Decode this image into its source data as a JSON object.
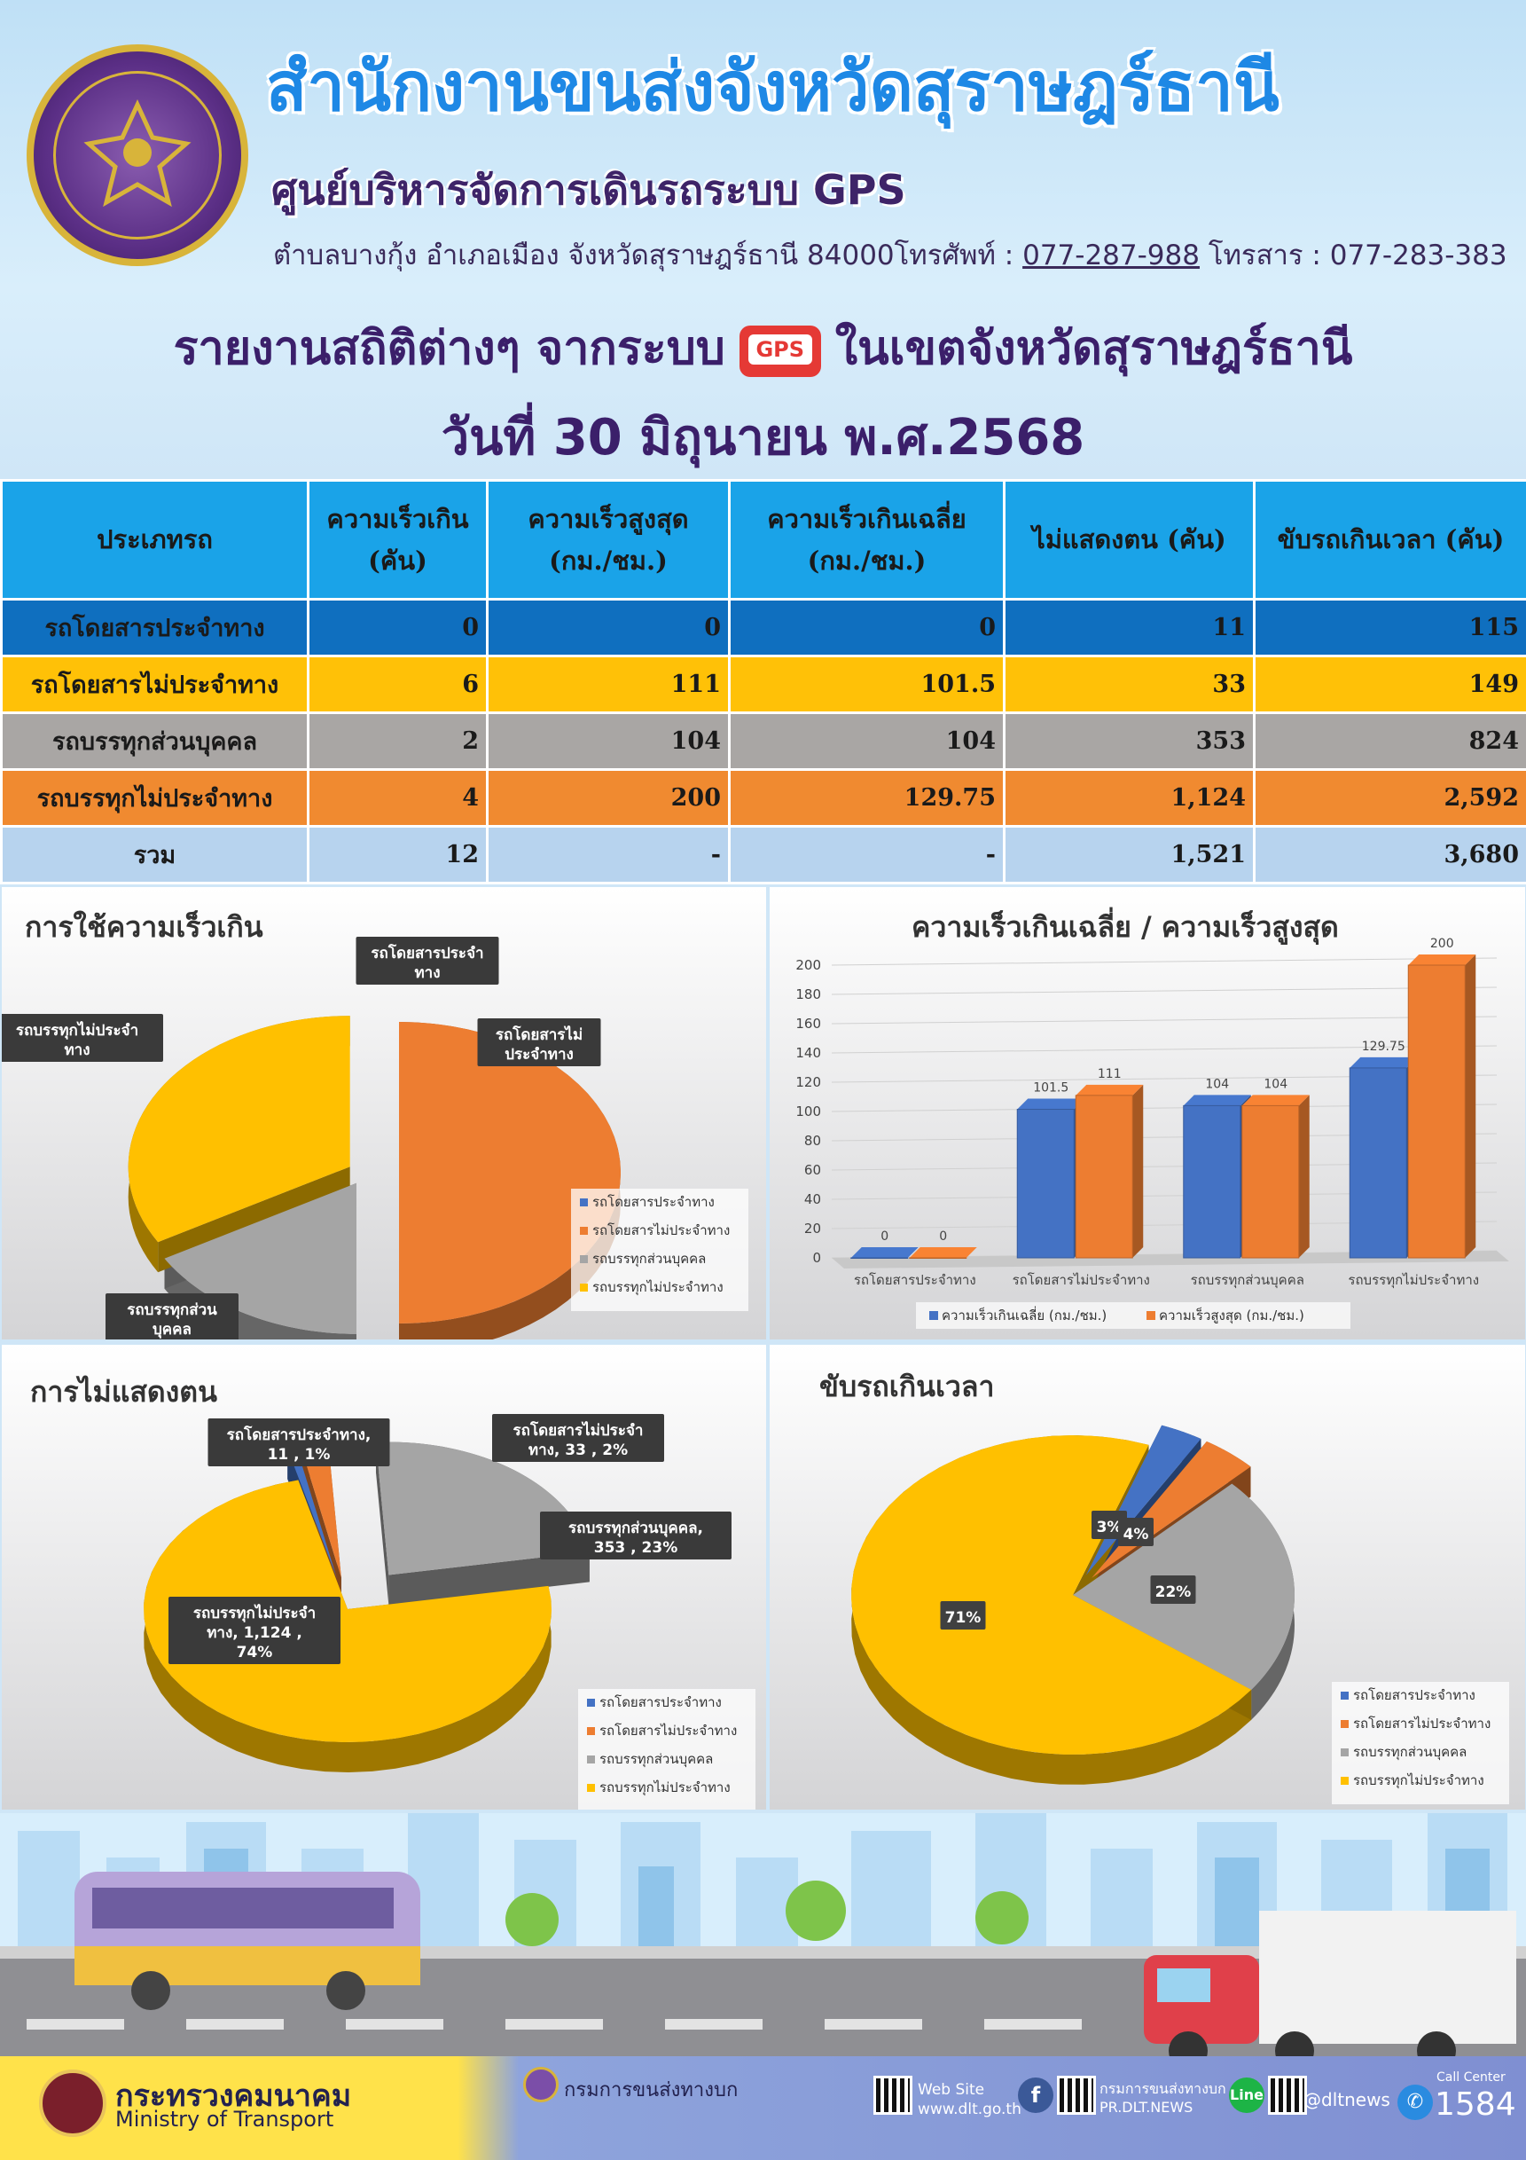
{
  "header": {
    "org_title": "สำนักงานขนส่งจังหวัดสุราษฎร์ธานี",
    "org_subtitle": "ศูนย์บริหารจัดการเดินรถระบบ GPS",
    "address": "ตำบลบางกุ้ง อำเภอเมือง จังหวัดสุราษฎร์ธานี 84000โทรศัพท์ : ",
    "phone": "077-287-988",
    "fax_label": " โทรสาร : ",
    "fax": "077-283-383",
    "report_title_left": "รายงานสถิติต่างๆ จากระบบ",
    "gps_badge": "GPS",
    "report_title_right": "ในเขตจังหวัดสุราษฎร์ธานี",
    "report_date": "วันที่ 30 มิถุนายน พ.ศ.2568"
  },
  "table": {
    "headers": [
      [
        "ประเภทรถ"
      ],
      [
        "ความเร็วเกิน",
        "(คัน)"
      ],
      [
        "ความเร็วสูงสุด",
        "(กม./ชม.)"
      ],
      [
        "ความเร็วเกินเฉลี่ย",
        "(กม./ชม.)"
      ],
      [
        "ไม่แสดงตน (คัน)"
      ],
      [
        "ขับรถเกินเวลา (คัน)"
      ]
    ],
    "rows": [
      [
        "รถโดยสารประจำทาง",
        "0",
        "0",
        "0",
        "11",
        "115"
      ],
      [
        "รถโดยสารไม่ประจำทาง",
        "6",
        "111",
        "101.5",
        "33",
        "149"
      ],
      [
        "รถบรรทุกส่วนบุคคล",
        "2",
        "104",
        "104",
        "353",
        "824"
      ],
      [
        "รถบรรทุกไม่ประจำทาง",
        "4",
        "200",
        "129.75",
        "1,124",
        "2,592"
      ],
      [
        "รวม",
        "12",
        "-",
        "-",
        "1,521",
        "3,680"
      ]
    ]
  },
  "colors": {
    "bus_fixed": "#4472c4",
    "bus_nonfixed": "#ed7d31",
    "truck_private": "#a5a5a5",
    "truck_nonfixed": "#ffc000"
  },
  "chart_data": [
    {
      "type": "pie",
      "title": "การใช้ความเร็วเกิน",
      "categories": [
        "รถโดยสารประจำทาง",
        "รถโดยสารไม่ประจำทาง",
        "รถบรรทุกส่วนบุคคล",
        "รถบรรทุกไม่ประจำทาง"
      ],
      "values": [
        0,
        6,
        2,
        4
      ],
      "callouts": [
        "รถโดยสารประจำ\nทาง",
        "รถโดยสารไม่\nประจำทาง",
        "รถบรรทุกส่วน\nบุคคล",
        "รถบรรทุกไม่ประจำ\nทาง"
      ],
      "legend": "right"
    },
    {
      "type": "bar",
      "title": "ความเร็วเกินเฉลี่ย / ความเร็วสูงสุด",
      "categories": [
        "รถโดยสารประจำทาง",
        "รถโดยสารไม่ประจำทาง",
        "รถบรรทุกส่วนบุคคล",
        "รถบรรทุกไม่ประจำทาง"
      ],
      "series": [
        {
          "name": "ความเร็วเกินเฉลี่ย (กม./ชม.)",
          "values": [
            0,
            101.5,
            104,
            129.75
          ],
          "labels": [
            "0",
            "101.5",
            "104",
            "129.75"
          ]
        },
        {
          "name": "ความเร็วสูงสุด (กม./ชม.)",
          "values": [
            0,
            111,
            104,
            200
          ],
          "labels": [
            "0",
            "111",
            "104",
            "200"
          ]
        }
      ],
      "ylim": [
        0,
        200
      ],
      "yticks": [
        "0",
        "20",
        "40",
        "60",
        "80",
        "100",
        "120",
        "140",
        "160",
        "180",
        "200"
      ],
      "legend": "bottom"
    },
    {
      "type": "pie",
      "title": "การไม่แสดงตน",
      "categories": [
        "รถโดยสารประจำทาง",
        "รถโดยสารไม่ประจำทาง",
        "รถบรรทุกส่วนบุคคล",
        "รถบรรทุกไม่ประจำทาง"
      ],
      "values": [
        11,
        33,
        353,
        1124
      ],
      "callouts": [
        "รถโดยสารประจำทาง,\n11 , 1%",
        "รถโดยสารไม่ประจำ\nทาง, 33 , 2%",
        "รถบรรทุกส่วนบุคคล,\n353 , 23%",
        "รถบรรทุกไม่ประจำ\nทาง, 1,124 ,\n74%"
      ],
      "legend": "right"
    },
    {
      "type": "pie",
      "title": "ขับรถเกินเวลา",
      "categories": [
        "รถโดยสารประจำทาง",
        "รถโดยสารไม่ประจำทาง",
        "รถบรรทุกส่วนบุคคล",
        "รถบรรทุกไม่ประจำทาง"
      ],
      "values": [
        115,
        149,
        824,
        2592
      ],
      "callouts": [
        "3%",
        "4%",
        "22%",
        "71%"
      ],
      "legend": "right"
    }
  ],
  "footer": {
    "ministry_th": "กระทรวงคมนาคม",
    "ministry_en": "Ministry of Transport",
    "dlt_name": "กรมการขนส่งทางบก",
    "website_label": "Web Site",
    "website": "www.dlt.go.th",
    "facebook_label": "กรมการขนส่งทางบก",
    "facebook": "PR.DLT.NEWS",
    "line_badge": "Line",
    "line_id": "@dltnews",
    "call_center_label": "Call Center",
    "call_center": "1584"
  }
}
